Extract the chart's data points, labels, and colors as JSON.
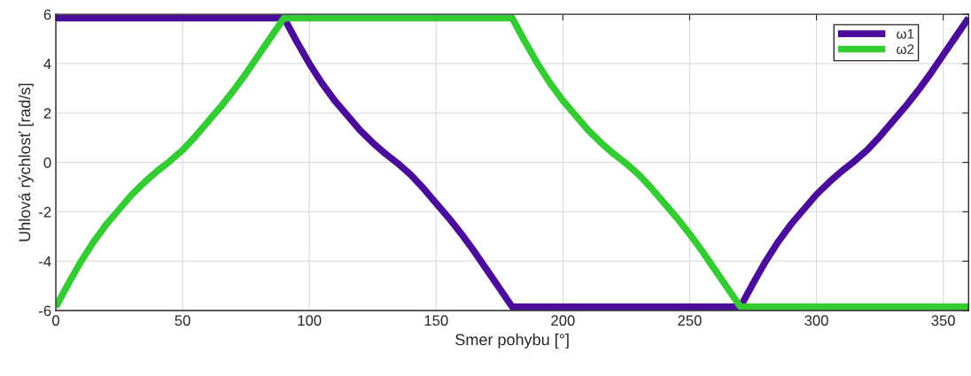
{
  "chart_data": {
    "type": "line",
    "xlabel": "Smer pohybu [°]",
    "ylabel": "Uhlová rýchlosť [rad/s]",
    "xlim": [
      0,
      360
    ],
    "ylim": [
      -6,
      6
    ],
    "xticks": [
      0,
      50,
      100,
      150,
      200,
      250,
      300,
      350
    ],
    "yticks": [
      -6,
      -4,
      -2,
      0,
      2,
      4,
      6
    ],
    "grid": true,
    "legend": "top right",
    "marker": "none",
    "line_style": "solid",
    "series": [
      {
        "name": "ω1",
        "color": "#4b0c9c",
        "x": [
          0,
          90,
          95,
          100,
          105,
          110,
          115,
          120,
          125,
          130,
          135,
          140,
          145,
          150,
          155,
          160,
          165,
          170,
          175,
          180,
          270,
          275,
          280,
          285,
          290,
          295,
          300,
          305,
          310,
          315,
          320,
          325,
          330,
          335,
          340,
          345,
          350,
          355,
          360
        ],
        "values": [
          5.85,
          5.85,
          4.9,
          4.0,
          3.2,
          2.5,
          1.9,
          1.3,
          0.8,
          0.35,
          -0.05,
          -0.5,
          -1.05,
          -1.65,
          -2.25,
          -2.9,
          -3.6,
          -4.35,
          -5.1,
          -5.85,
          -5.85,
          -4.9,
          -4.0,
          -3.2,
          -2.5,
          -1.9,
          -1.3,
          -0.8,
          -0.35,
          0.05,
          0.5,
          1.05,
          1.65,
          2.25,
          2.9,
          3.6,
          4.35,
          5.1,
          5.85
        ]
      },
      {
        "name": "ω2",
        "color": "#33cc33",
        "x": [
          0,
          5,
          10,
          15,
          20,
          25,
          30,
          35,
          40,
          45,
          50,
          55,
          60,
          65,
          70,
          75,
          80,
          85,
          90,
          180,
          185,
          190,
          195,
          200,
          205,
          210,
          215,
          220,
          225,
          230,
          235,
          240,
          245,
          250,
          255,
          260,
          265,
          270,
          360
        ],
        "values": [
          -5.85,
          -4.9,
          -4.0,
          -3.2,
          -2.5,
          -1.9,
          -1.3,
          -0.8,
          -0.35,
          0.05,
          0.5,
          1.05,
          1.65,
          2.25,
          2.9,
          3.6,
          4.35,
          5.1,
          5.85,
          5.85,
          4.9,
          4.0,
          3.2,
          2.5,
          1.9,
          1.3,
          0.8,
          0.35,
          -0.05,
          -0.5,
          -1.05,
          -1.65,
          -2.25,
          -2.9,
          -3.6,
          -4.35,
          -5.1,
          -5.85,
          -5.85
        ]
      }
    ]
  }
}
